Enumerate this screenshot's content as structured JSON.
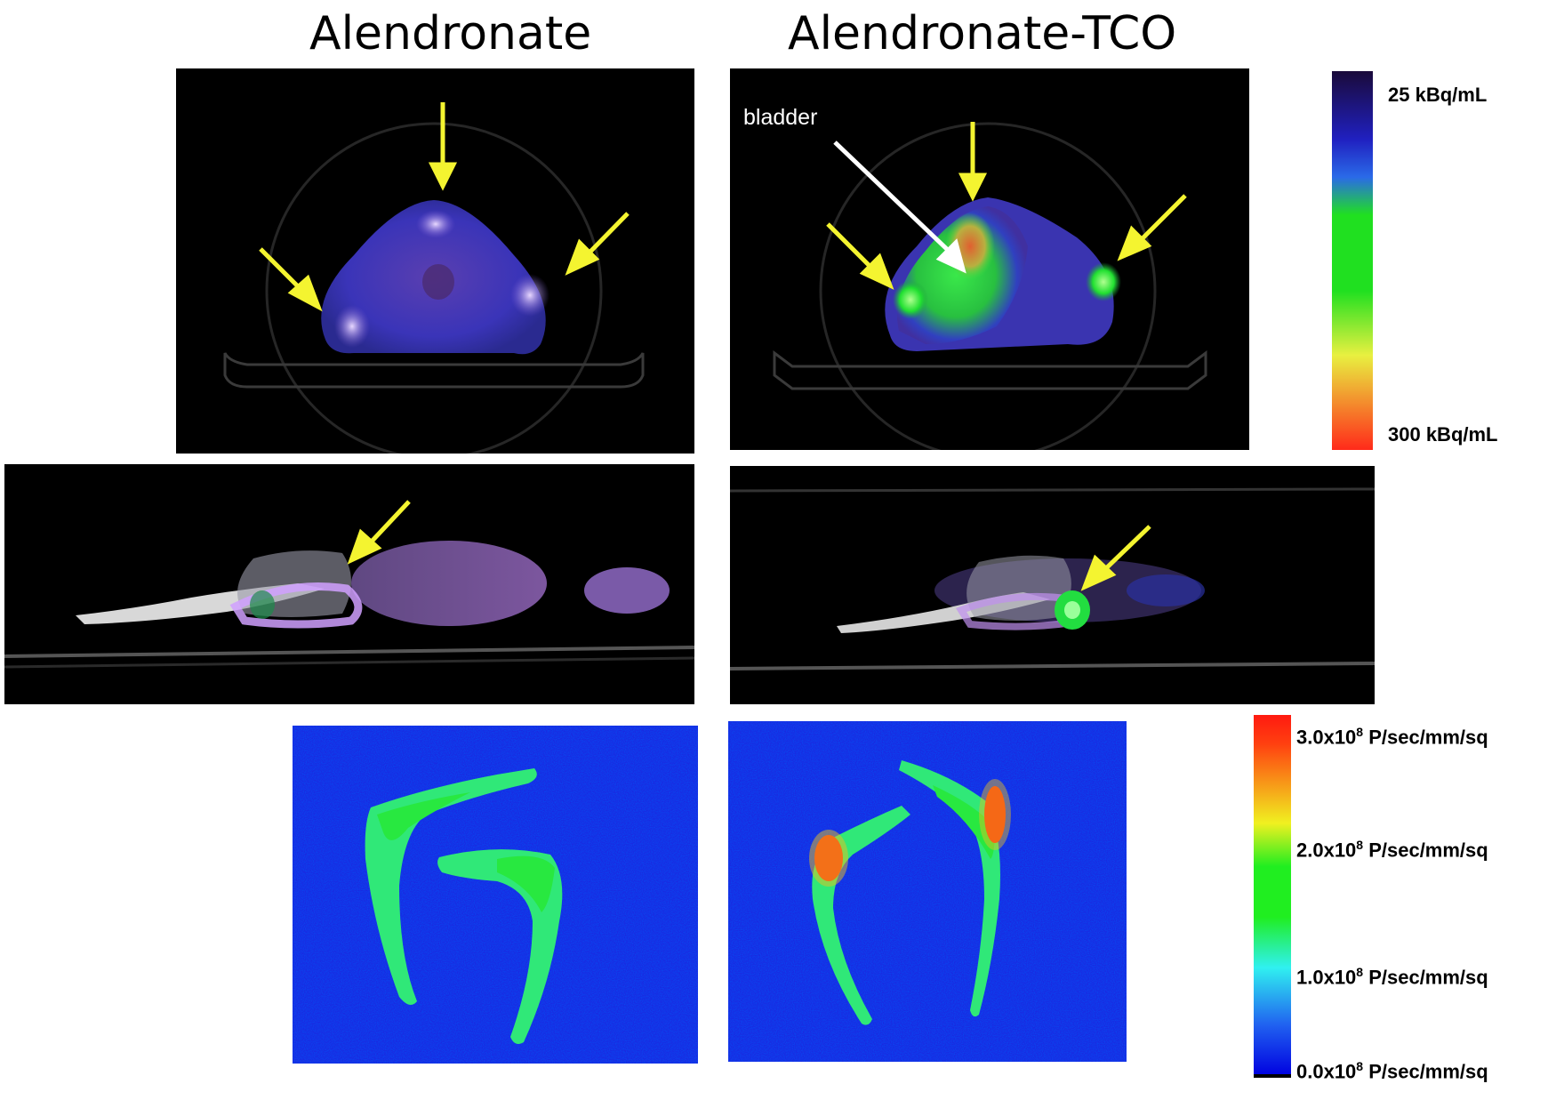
{
  "columns": {
    "left_title": "Alendronate",
    "right_title": "Alendronate-TCO"
  },
  "annotations": {
    "bladder_label": "bladder"
  },
  "pet_colorbar": {
    "top_label": "25 kBq/mL",
    "bottom_label": "300 kBq/mL",
    "colors": [
      "#1a0a3a",
      "#2020c0",
      "#2a6ae8",
      "#20e020",
      "#e8f040",
      "#ff2a1a"
    ]
  },
  "fluor_colorbar": {
    "ticks": [
      {
        "mantissa": "3.0x10",
        "exp": "8",
        "unit": " P/sec/mm/sq"
      },
      {
        "mantissa": "2.0x10",
        "exp": "8",
        "unit": " P/sec/mm/sq"
      },
      {
        "mantissa": "1.0x10",
        "exp": "8",
        "unit": " P/sec/mm/sq"
      },
      {
        "mantissa": "0.0x10",
        "exp": "8",
        "unit": " P/sec/mm/sq"
      }
    ],
    "colors": [
      "#ff1a10",
      "#f0f020",
      "#20ee20",
      "#30f0f0",
      "#2060f0",
      "#0000e0"
    ]
  },
  "arrow_color": "#f4f430"
}
